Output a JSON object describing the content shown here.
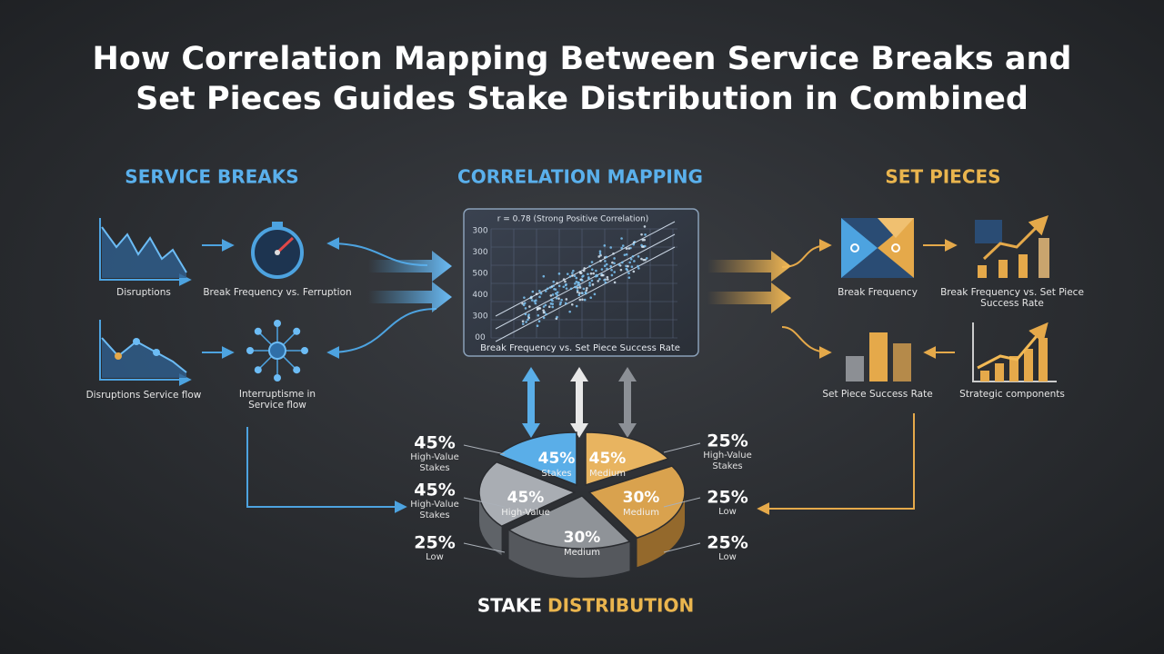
{
  "title_lines": [
    "How Correlation Mapping Between Service Breaks and",
    "Set Pieces Guides Stake Distribution in Combined"
  ],
  "service_breaks": {
    "heading": "SERVICE BREAKS",
    "items": [
      {
        "lines": [
          "Disruptions"
        ]
      },
      {
        "lines": [
          "Break Frequency vs. Ferruption"
        ]
      },
      {
        "lines": [
          "Disruptions Service flow"
        ]
      },
      {
        "lines": [
          "Interruptisme in",
          "Service flow"
        ]
      }
    ]
  },
  "correlation_mapping": {
    "heading": "CORRELATION MAPPING",
    "annotation": "r = 0.78 (Strong Positive Correlation)",
    "y_labels": [
      "300",
      "300",
      "500",
      "400",
      "300",
      "00"
    ],
    "caption": "Break Frequency vs. Set Piece Success Rate"
  },
  "set_pieces": {
    "heading": "SET PIECES",
    "items": [
      {
        "lines": [
          "Break Frequency"
        ]
      },
      {
        "lines": [
          "Break Frequency vs. Set Piece",
          "Success Rate"
        ]
      },
      {
        "lines": [
          "Set Piece Success Rate"
        ]
      },
      {
        "lines": [
          "Strategic components"
        ]
      }
    ]
  },
  "stake_distribution": {
    "heading": [
      "STAKE",
      "DISTRIBUTION"
    ],
    "slices": [
      {
        "value": "45%",
        "label": "Stakes"
      },
      {
        "value": "45%",
        "label": "Medium"
      },
      {
        "value": "45%",
        "label": "High-Value"
      },
      {
        "value": "30%",
        "label": "Medium"
      },
      {
        "value": "30%",
        "label": "Medium"
      }
    ],
    "left_labels": [
      {
        "value": "45%",
        "lines": [
          "High-Value",
          "Stakes"
        ]
      },
      {
        "value": "45%",
        "lines": [
          "High-Value",
          "Stakes"
        ]
      },
      {
        "value": "25%",
        "lines": [
          "Low"
        ]
      }
    ],
    "right_labels": [
      {
        "value": "25%",
        "lines": [
          "High-Value",
          "Stakes"
        ]
      },
      {
        "value": "25%",
        "lines": [
          "Low"
        ]
      },
      {
        "value": "25%",
        "lines": [
          "Low"
        ]
      }
    ]
  }
}
